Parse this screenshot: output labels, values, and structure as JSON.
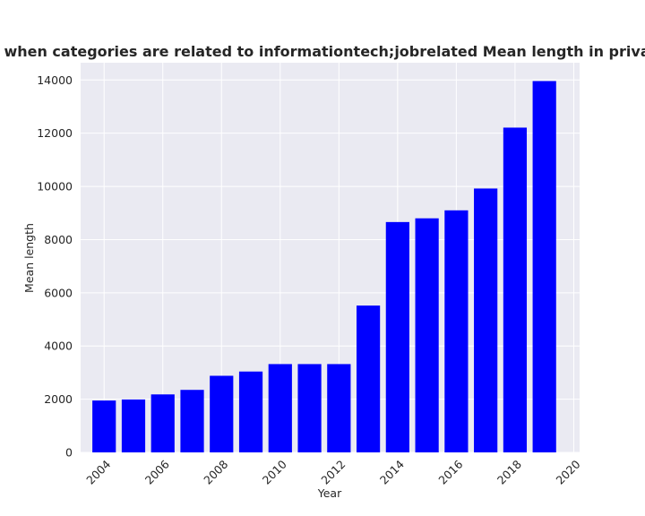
{
  "chart_data": {
    "type": "bar",
    "title": "Number of words when categories are related to informationtech;jobrelated Mean length in privacy policies by Year",
    "xlabel": "Year",
    "ylabel": "Mean length",
    "x": [
      2004,
      2005,
      2006,
      2007,
      2008,
      2009,
      2010,
      2011,
      2012,
      2013,
      2014,
      2015,
      2016,
      2017,
      2018,
      2019
    ],
    "values": [
      1950,
      1990,
      2180,
      2350,
      2880,
      3040,
      3320,
      3320,
      3320,
      5520,
      8660,
      8800,
      9100,
      9920,
      12210,
      13960
    ],
    "xlim": [
      2003.2,
      2020.2
    ],
    "ylim": [
      0,
      14650
    ],
    "xticks": [
      2004,
      2006,
      2008,
      2010,
      2012,
      2014,
      2016,
      2018,
      2020
    ],
    "yticks": [
      0,
      2000,
      4000,
      6000,
      8000,
      10000,
      12000,
      14000
    ],
    "bar_color": "#0000ff",
    "background_color": "#eaeaf2",
    "grid": true
  }
}
